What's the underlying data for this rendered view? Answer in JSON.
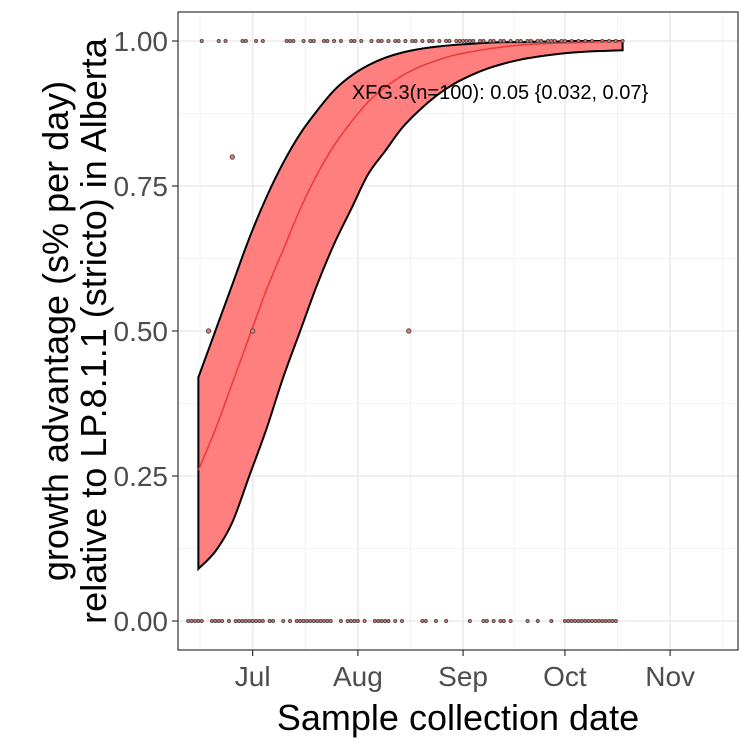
{
  "chart_data": {
    "type": "line",
    "title": "",
    "xlabel": "Sample collection date",
    "ylabel_line1": "growth advantage (s% per day)",
    "ylabel_line2": "relative to LP.8.1.1 (stricto) in Alberta",
    "annotation": "XFG.3(n=100): 0.05 {0.032, 0.07}",
    "x_domain": [
      "2025-06-09",
      "2025-11-21"
    ],
    "y_domain": [
      -0.05,
      1.05
    ],
    "grid": true,
    "x_ticks": [
      {
        "date": "2025-07-01",
        "label": "Jul"
      },
      {
        "date": "2025-08-01",
        "label": "Aug"
      },
      {
        "date": "2025-09-01",
        "label": "Sep"
      },
      {
        "date": "2025-10-01",
        "label": "Oct"
      },
      {
        "date": "2025-11-01",
        "label": "Nov"
      }
    ],
    "y_ticks": [
      {
        "value": 0,
        "label": "0.00"
      },
      {
        "value": 0.25,
        "label": "0.25"
      },
      {
        "value": 0.5,
        "label": "0.50"
      },
      {
        "value": 0.75,
        "label": "0.75"
      },
      {
        "value": 1,
        "label": "1.00"
      }
    ],
    "colors": {
      "fit": "#f8766d",
      "band": "#ff7f7f",
      "band_edge": "#000000",
      "point": "#4d4d4d"
    },
    "series": [
      {
        "name": "XFG.3",
        "x": [
          "2025-06-15",
          "2025-06-20",
          "2025-06-25",
          "2025-06-30",
          "2025-07-05",
          "2025-07-10",
          "2025-07-15",
          "2025-07-20",
          "2025-07-25",
          "2025-07-30",
          "2025-08-04",
          "2025-08-09",
          "2025-08-14",
          "2025-08-19",
          "2025-08-24",
          "2025-08-29",
          "2025-09-03",
          "2025-09-08",
          "2025-09-13",
          "2025-09-18",
          "2025-09-23",
          "2025-09-28",
          "2025-10-03",
          "2025-10-08",
          "2025-10-13",
          "2025-10-18"
        ],
        "fit": [
          0.26,
          0.33,
          0.41,
          0.49,
          0.57,
          0.64,
          0.71,
          0.77,
          0.82,
          0.86,
          0.895,
          0.92,
          0.94,
          0.955,
          0.966,
          0.975,
          0.981,
          0.986,
          0.99,
          0.993,
          0.995,
          0.996,
          0.997,
          0.998,
          0.999,
          0.999
        ],
        "lower": [
          0.09,
          0.12,
          0.17,
          0.25,
          0.33,
          0.42,
          0.5,
          0.58,
          0.65,
          0.71,
          0.77,
          0.81,
          0.85,
          0.88,
          0.905,
          0.925,
          0.94,
          0.952,
          0.961,
          0.968,
          0.973,
          0.977,
          0.98,
          0.982,
          0.983,
          0.984
        ],
        "upper": [
          0.42,
          0.5,
          0.58,
          0.66,
          0.73,
          0.79,
          0.84,
          0.88,
          0.915,
          0.94,
          0.958,
          0.971,
          0.98,
          0.986,
          0.99,
          0.993,
          0.995,
          0.997,
          0.998,
          0.998,
          0.999,
          0.999,
          1.0,
          1.0,
          1.0,
          1.0
        ]
      }
    ],
    "points": [
      {
        "x": "2025-06-16",
        "y": 1
      },
      {
        "x": "2025-06-21",
        "y": 1
      },
      {
        "x": "2025-06-23",
        "y": 1
      },
      {
        "x": "2025-06-28",
        "y": 1
      },
      {
        "x": "2025-06-29",
        "y": 1
      },
      {
        "x": "2025-07-02",
        "y": 1
      },
      {
        "x": "2025-07-04",
        "y": 1
      },
      {
        "x": "2025-07-11",
        "y": 1
      },
      {
        "x": "2025-07-12",
        "y": 1
      },
      {
        "x": "2025-07-13",
        "y": 1
      },
      {
        "x": "2025-07-16",
        "y": 1
      },
      {
        "x": "2025-07-18",
        "y": 1
      },
      {
        "x": "2025-07-19",
        "y": 1
      },
      {
        "x": "2025-07-22",
        "y": 1
      },
      {
        "x": "2025-07-23",
        "y": 1
      },
      {
        "x": "2025-07-25",
        "y": 1
      },
      {
        "x": "2025-07-27",
        "y": 1
      },
      {
        "x": "2025-07-30",
        "y": 1
      },
      {
        "x": "2025-07-31",
        "y": 1
      },
      {
        "x": "2025-08-02",
        "y": 1
      },
      {
        "x": "2025-08-05",
        "y": 1
      },
      {
        "x": "2025-08-07",
        "y": 1
      },
      {
        "x": "2025-08-08",
        "y": 1
      },
      {
        "x": "2025-08-10",
        "y": 1
      },
      {
        "x": "2025-08-12",
        "y": 1
      },
      {
        "x": "2025-08-13",
        "y": 1
      },
      {
        "x": "2025-08-15",
        "y": 1
      },
      {
        "x": "2025-08-17",
        "y": 1
      },
      {
        "x": "2025-08-18",
        "y": 1
      },
      {
        "x": "2025-08-20",
        "y": 1
      },
      {
        "x": "2025-08-22",
        "y": 1
      },
      {
        "x": "2025-08-23",
        "y": 1
      },
      {
        "x": "2025-08-25",
        "y": 1
      },
      {
        "x": "2025-08-27",
        "y": 1
      },
      {
        "x": "2025-08-28",
        "y": 1
      },
      {
        "x": "2025-08-30",
        "y": 1
      },
      {
        "x": "2025-08-31",
        "y": 1
      },
      {
        "x": "2025-09-01",
        "y": 1
      },
      {
        "x": "2025-09-02",
        "y": 1
      },
      {
        "x": "2025-09-03",
        "y": 1
      },
      {
        "x": "2025-09-04",
        "y": 1
      },
      {
        "x": "2025-09-06",
        "y": 1
      },
      {
        "x": "2025-09-07",
        "y": 1
      },
      {
        "x": "2025-09-09",
        "y": 1
      },
      {
        "x": "2025-09-10",
        "y": 1
      },
      {
        "x": "2025-09-12",
        "y": 1
      },
      {
        "x": "2025-09-13",
        "y": 1
      },
      {
        "x": "2025-09-15",
        "y": 1
      },
      {
        "x": "2025-09-17",
        "y": 1
      },
      {
        "x": "2025-09-18",
        "y": 1
      },
      {
        "x": "2025-09-20",
        "y": 1
      },
      {
        "x": "2025-09-21",
        "y": 1
      },
      {
        "x": "2025-09-23",
        "y": 1
      },
      {
        "x": "2025-09-24",
        "y": 1
      },
      {
        "x": "2025-09-26",
        "y": 1
      },
      {
        "x": "2025-09-27",
        "y": 1
      },
      {
        "x": "2025-09-28",
        "y": 1
      },
      {
        "x": "2025-09-30",
        "y": 1
      },
      {
        "x": "2025-10-01",
        "y": 1
      },
      {
        "x": "2025-10-03",
        "y": 1
      },
      {
        "x": "2025-10-05",
        "y": 1
      },
      {
        "x": "2025-10-07",
        "y": 1
      },
      {
        "x": "2025-10-09",
        "y": 1
      },
      {
        "x": "2025-10-12",
        "y": 1
      },
      {
        "x": "2025-10-14",
        "y": 1
      },
      {
        "x": "2025-10-16",
        "y": 1
      },
      {
        "x": "2025-10-18",
        "y": 1
      },
      {
        "x": "2025-06-25",
        "y": 0.8
      },
      {
        "x": "2025-06-18",
        "y": 0.5
      },
      {
        "x": "2025-07-01",
        "y": 0.5
      },
      {
        "x": "2025-08-16",
        "y": 0.5
      },
      {
        "x": "2025-06-12",
        "y": 0
      },
      {
        "x": "2025-06-13",
        "y": 0
      },
      {
        "x": "2025-06-14",
        "y": 0
      },
      {
        "x": "2025-06-15",
        "y": 0
      },
      {
        "x": "2025-06-16",
        "y": 0
      },
      {
        "x": "2025-06-19",
        "y": 0
      },
      {
        "x": "2025-06-20",
        "y": 0
      },
      {
        "x": "2025-06-21",
        "y": 0
      },
      {
        "x": "2025-06-22",
        "y": 0
      },
      {
        "x": "2025-06-24",
        "y": 0
      },
      {
        "x": "2025-06-26",
        "y": 0
      },
      {
        "x": "2025-06-27",
        "y": 0
      },
      {
        "x": "2025-06-28",
        "y": 0
      },
      {
        "x": "2025-06-29",
        "y": 0
      },
      {
        "x": "2025-06-30",
        "y": 0
      },
      {
        "x": "2025-07-01",
        "y": 0
      },
      {
        "x": "2025-07-02",
        "y": 0
      },
      {
        "x": "2025-07-03",
        "y": 0
      },
      {
        "x": "2025-07-04",
        "y": 0
      },
      {
        "x": "2025-07-06",
        "y": 0
      },
      {
        "x": "2025-07-07",
        "y": 0
      },
      {
        "x": "2025-07-10",
        "y": 0
      },
      {
        "x": "2025-07-12",
        "y": 0
      },
      {
        "x": "2025-07-14",
        "y": 0
      },
      {
        "x": "2025-07-15",
        "y": 0
      },
      {
        "x": "2025-07-16",
        "y": 0
      },
      {
        "x": "2025-07-17",
        "y": 0
      },
      {
        "x": "2025-07-18",
        "y": 0
      },
      {
        "x": "2025-07-19",
        "y": 0
      },
      {
        "x": "2025-07-20",
        "y": 0
      },
      {
        "x": "2025-07-21",
        "y": 0
      },
      {
        "x": "2025-07-22",
        "y": 0
      },
      {
        "x": "2025-07-23",
        "y": 0
      },
      {
        "x": "2025-07-24",
        "y": 0
      },
      {
        "x": "2025-07-27",
        "y": 0
      },
      {
        "x": "2025-07-29",
        "y": 0
      },
      {
        "x": "2025-07-30",
        "y": 0
      },
      {
        "x": "2025-07-31",
        "y": 0
      },
      {
        "x": "2025-08-01",
        "y": 0
      },
      {
        "x": "2025-08-03",
        "y": 0
      },
      {
        "x": "2025-08-06",
        "y": 0
      },
      {
        "x": "2025-08-07",
        "y": 0
      },
      {
        "x": "2025-08-08",
        "y": 0
      },
      {
        "x": "2025-08-09",
        "y": 0
      },
      {
        "x": "2025-08-10",
        "y": 0
      },
      {
        "x": "2025-08-12",
        "y": 0
      },
      {
        "x": "2025-08-14",
        "y": 0
      },
      {
        "x": "2025-08-20",
        "y": 0
      },
      {
        "x": "2025-08-21",
        "y": 0
      },
      {
        "x": "2025-08-24",
        "y": 0
      },
      {
        "x": "2025-08-27",
        "y": 0
      },
      {
        "x": "2025-09-03",
        "y": 0
      },
      {
        "x": "2025-09-07",
        "y": 0
      },
      {
        "x": "2025-09-08",
        "y": 0
      },
      {
        "x": "2025-09-10",
        "y": 0
      },
      {
        "x": "2025-09-12",
        "y": 0
      },
      {
        "x": "2025-09-13",
        "y": 0
      },
      {
        "x": "2025-09-15",
        "y": 0
      },
      {
        "x": "2025-09-20",
        "y": 0
      },
      {
        "x": "2025-09-23",
        "y": 0
      },
      {
        "x": "2025-09-27",
        "y": 0
      },
      {
        "x": "2025-10-01",
        "y": 0
      },
      {
        "x": "2025-10-02",
        "y": 0
      },
      {
        "x": "2025-10-03",
        "y": 0
      },
      {
        "x": "2025-10-04",
        "y": 0
      },
      {
        "x": "2025-10-05",
        "y": 0
      },
      {
        "x": "2025-10-06",
        "y": 0
      },
      {
        "x": "2025-10-07",
        "y": 0
      },
      {
        "x": "2025-10-08",
        "y": 0
      },
      {
        "x": "2025-10-09",
        "y": 0
      },
      {
        "x": "2025-10-10",
        "y": 0
      },
      {
        "x": "2025-10-11",
        "y": 0
      },
      {
        "x": "2025-10-12",
        "y": 0
      },
      {
        "x": "2025-10-13",
        "y": 0
      },
      {
        "x": "2025-10-14",
        "y": 0
      },
      {
        "x": "2025-10-15",
        "y": 0
      },
      {
        "x": "2025-10-16",
        "y": 0
      }
    ]
  }
}
